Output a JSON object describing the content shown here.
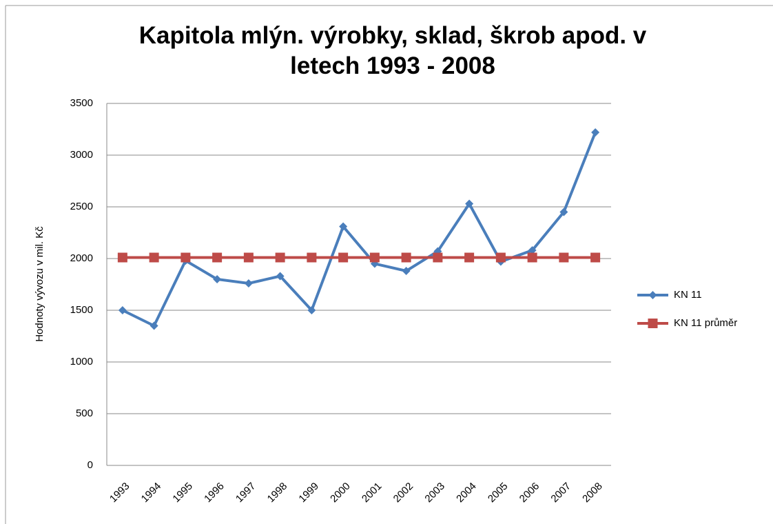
{
  "chart_data": {
    "type": "line",
    "title": "Kapitola mlýn. výrobky, sklad, škrob apod. v letech 1993 - 2008",
    "y_label": "Hodnoty vývozu v mil. Kč",
    "categories": [
      "1993",
      "1994",
      "1995",
      "1996",
      "1997",
      "1998",
      "1999",
      "2000",
      "2001",
      "2002",
      "2003",
      "2004",
      "2005",
      "2006",
      "2007",
      "2008"
    ],
    "series": [
      {
        "name": "KN 11",
        "color": "#4a7ebb",
        "marker": "diamond",
        "values": [
          1500,
          1350,
          1980,
          1800,
          1760,
          1830,
          1500,
          2310,
          1950,
          1880,
          2070,
          2530,
          1970,
          2080,
          2450,
          3220
        ]
      },
      {
        "name": "KN 11 průměr",
        "color": "#be4b48",
        "marker": "square",
        "values": [
          2010,
          2010,
          2010,
          2010,
          2010,
          2010,
          2010,
          2010,
          2010,
          2010,
          2010,
          2010,
          2010,
          2010,
          2010,
          2010
        ]
      }
    ],
    "ylim": [
      0,
      3500
    ],
    "yticks": [
      0,
      500,
      1000,
      1500,
      2000,
      2500,
      3000,
      3500
    ],
    "grid": true,
    "legend": "right"
  }
}
